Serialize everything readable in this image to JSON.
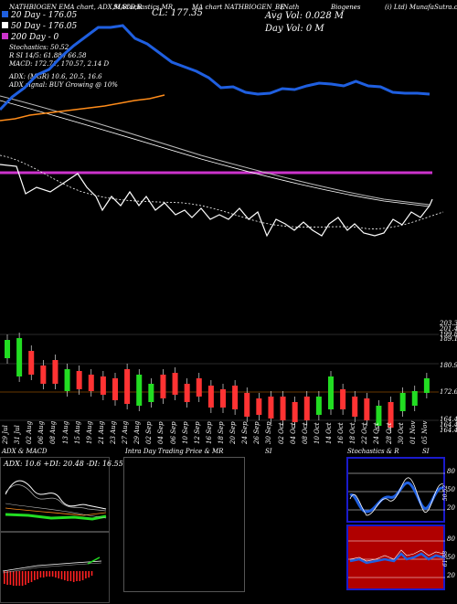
{
  "header": {
    "l1a": "NATHBIOGEN EMA chart, ADX,MACD,R",
    "l1b": "SI,Stochastics,MR",
    "l1c": "CL: 177.35",
    "l1d": "MA chart NATHBIOGEN_BE",
    "l1e": "(Nath",
    "l1f": "Biogenes",
    "l1g": "(i) Ltd) MunafaSutra.com",
    "ema20": "20 Day - 176.05",
    "ema50": "50 Day - 176.05",
    "ema200": "200 Day - 0",
    "avg_vol": "Avg Vol: 0.028  M",
    "day_vol": "Day Vol: 0  M",
    "stoch": "Stochastics: 50.52",
    "rsi": "R                    SI 14/5: 61.88 / 66.58",
    "macd": "MACD: 172.71, 170.57, 2.14  D",
    "adx": "ADX:                        (MGR) 10.6, 20.5, 16.6",
    "adx_signal": "ADX signal:                                    BUY Growing @ 10%"
  },
  "colors": {
    "ema20": "#1f5fe0",
    "ema50": "#ff8c1a",
    "ema200": "#cc33cc"
  },
  "chart_data": [
    {
      "type": "line",
      "title": "EMA chart",
      "series": [
        {
          "name": "20 Day",
          "values": [
            250,
            236,
            226,
            212,
            206,
            192,
            180,
            170,
            160,
            160,
            158,
            172,
            178,
            188,
            198,
            203,
            208,
            215,
            226,
            225,
            231,
            233,
            232,
            227,
            228,
            224,
            221,
            222,
            224,
            219,
            224,
            225,
            231,
            232,
            232,
            233
          ]
        },
        {
          "name": "50 Day",
          "values": [
            204,
            202,
            198,
            196,
            194,
            192,
            190,
            188,
            185,
            182,
            180,
            176
          ]
        },
        {
          "name": "200 Day",
          "values": [
            0
          ]
        }
      ]
    },
    {
      "type": "bar",
      "title": "Candles",
      "price_labels": [
        "203.3",
        "201.48",
        "199.81",
        "189.12",
        "180.9",
        "172.67",
        "164.45",
        "164.45",
        "164.45"
      ],
      "categories": [
        "29 Jul",
        "31 Jul",
        "02 Aug",
        "06 Aug",
        "08 Aug",
        "13 Aug",
        "15 Aug",
        "19 Aug",
        "21 Aug",
        "23 Aug",
        "27 Aug",
        "29 Aug",
        "02 Sep",
        "04 Sep",
        "06 Sep",
        "10 Sep",
        "12 Sep",
        "16 Sep",
        "18 Sep",
        "20 Sep",
        "24 Sep",
        "26 Sep",
        "30 Sep",
        "02 Oct",
        "04 Oct",
        "08 Oct",
        "10 Oct",
        "14 Oct",
        "16 Oct",
        "18 Oct",
        "22 Oct",
        "24 Oct",
        "28 Oct",
        "30 Oct",
        "01 Nov",
        "05 Nov"
      ]
    }
  ],
  "panels": {
    "adx_title": "ADX & MACD",
    "adx_values": "ADX: 10.6  +DI: 20.48  -DI: 16.55",
    "intra_title": "Intra Day Trading Price  & MR",
    "intra_si": "SI",
    "stoch_title": "Stochastics & R",
    "stoch_si": "SI",
    "stoch_labels": [
      "80",
      "50",
      "20"
    ],
    "stoch_val": "50.52",
    "rsi_labels": [
      "80",
      "50",
      "20"
    ],
    "rsi_val": "61.88"
  }
}
